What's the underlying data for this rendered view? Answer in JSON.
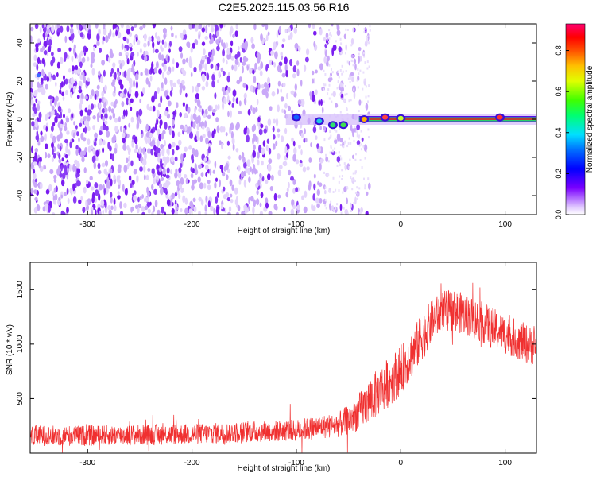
{
  "title": "C2E5.2025.115.03.56.R16",
  "chart_data": [
    {
      "type": "heatmap",
      "title": "C2E5.2025.115.03.56.R16",
      "xlabel": "Height of straight line (km)",
      "ylabel": "Frequency (Hz)",
      "xlim": [
        -355,
        130
      ],
      "ylim": [
        -50,
        50
      ],
      "x_ticks": [
        -300,
        -200,
        -100,
        0,
        100
      ],
      "y_ticks": [
        -40,
        -20,
        0,
        20,
        40
      ],
      "colorbar": {
        "label": "Normalized spectral amplitude",
        "range": [
          0,
          0.93
        ],
        "ticks": [
          0.0,
          0.2,
          0.4,
          0.6,
          0.8
        ],
        "tick_labels": [
          "0.0",
          "0.2",
          "0.4",
          "0.6",
          "0.8"
        ]
      },
      "features": {
        "noise_region_x": [
          -355,
          -45
        ],
        "signal_line_frequency_hz": 0,
        "signal_onset_x": -110,
        "marker_point": {
          "x": -347,
          "y": 23
        }
      }
    },
    {
      "type": "line",
      "xlabel": "Height of straight line (km)",
      "ylabel": "SNR (10 * v/v)",
      "xlim": [
        -355,
        130
      ],
      "ylim": [
        0,
        1750
      ],
      "x_ticks": [
        -300,
        -200,
        -100,
        0,
        100
      ],
      "y_ticks": [
        500,
        1000,
        1500
      ],
      "series": [
        {
          "name": "SNR",
          "color": "#f03030",
          "envelope_x": [
            -355,
            -300,
            -200,
            -100,
            -60,
            -45,
            -30,
            -15,
            0,
            10,
            20,
            30,
            40,
            50,
            60,
            80,
            100,
            115,
            130
          ],
          "envelope_mean": [
            160,
            160,
            175,
            210,
            260,
            330,
            480,
            620,
            760,
            900,
            1060,
            1200,
            1300,
            1310,
            1280,
            1190,
            1090,
            1030,
            960
          ],
          "envelope_spread": [
            95,
            95,
            95,
            100,
            115,
            150,
            210,
            230,
            230,
            220,
            220,
            210,
            190,
            190,
            190,
            190,
            180,
            180,
            180
          ]
        }
      ]
    }
  ]
}
